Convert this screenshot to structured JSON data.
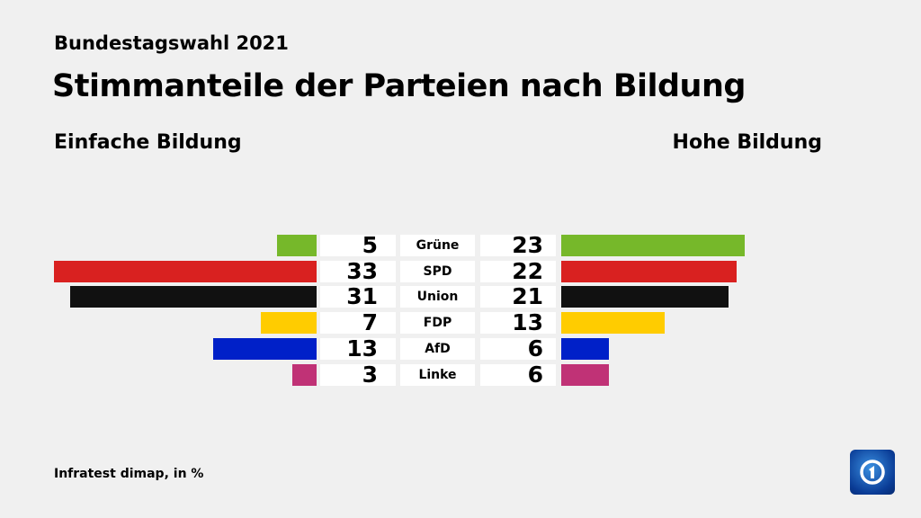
{
  "header": {
    "supertitle": "Bundestagswahl 2021",
    "title": "Stimmanteile der Parteien nach Bildung"
  },
  "source": "Infratest dimap, in %",
  "logo": "ARD Das Erste logo",
  "chart_data": {
    "type": "bar",
    "orientation": "horizontal-butterfly",
    "unit": "%",
    "categories": [
      "Grüne",
      "SPD",
      "Union",
      "FDP",
      "AfD",
      "Linke"
    ],
    "colors": [
      "#76b82a",
      "#d92120",
      "#111111",
      "#ffcc00",
      "#0020c8",
      "#c03276"
    ],
    "series": [
      {
        "name": "Einfache Bildung",
        "values": [
          5,
          33,
          31,
          7,
          13,
          3
        ]
      },
      {
        "name": "Hohe Bildung",
        "values": [
          23,
          22,
          21,
          13,
          6,
          6
        ]
      }
    ]
  }
}
